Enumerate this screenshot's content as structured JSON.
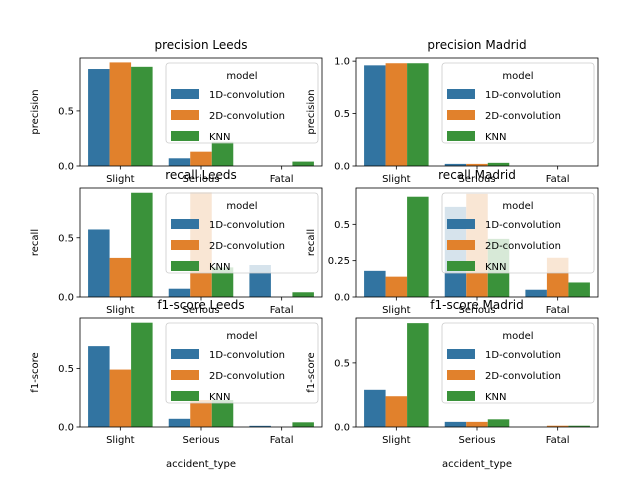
{
  "colors": {
    "1D-convolution": "#3274a1",
    "2D-convolution": "#e1812c",
    "KNN": "#3a923a"
  },
  "chart_data": [
    {
      "type": "bar",
      "title": "precision Leeds",
      "ylabel": "precision",
      "xlabel": "",
      "categories": [
        "Slight",
        "Serious",
        "Fatal"
      ],
      "yticks": [
        0.0,
        0.5
      ],
      "ylim": [
        0,
        0.98
      ],
      "legend_title": "model",
      "legend_position": "upper right",
      "series": [
        {
          "name": "1D-convolution",
          "values": [
            0.88,
            0.07,
            0.0
          ]
        },
        {
          "name": "2D-convolution",
          "values": [
            0.94,
            0.13,
            0.0
          ]
        },
        {
          "name": "KNN",
          "values": [
            0.9,
            0.22,
            0.04
          ]
        }
      ]
    },
    {
      "type": "bar",
      "title": "precision Madrid",
      "ylabel": "precision",
      "xlabel": "",
      "categories": [
        "Slight",
        "Serious",
        "Fatal"
      ],
      "yticks": [
        0.0,
        0.5,
        1.0
      ],
      "ylim": [
        0,
        1.03
      ],
      "legend_title": "model",
      "legend_position": "upper right",
      "series": [
        {
          "name": "1D-convolution",
          "values": [
            0.96,
            0.02,
            0.0
          ]
        },
        {
          "name": "2D-convolution",
          "values": [
            0.98,
            0.02,
            0.0
          ]
        },
        {
          "name": "KNN",
          "values": [
            0.98,
            0.03,
            0.0
          ]
        }
      ]
    },
    {
      "type": "bar",
      "title": "recall Leeds",
      "ylabel": "recall",
      "xlabel": "",
      "categories": [
        "Slight",
        "Serious",
        "Fatal"
      ],
      "yticks": [
        0.0,
        0.5
      ],
      "ylim": [
        0,
        0.92
      ],
      "legend_title": "model",
      "legend_position": "upper right",
      "series": [
        {
          "name": "1D-convolution",
          "values": [
            0.57,
            0.07,
            0.27
          ]
        },
        {
          "name": "2D-convolution",
          "values": [
            0.33,
            0.88,
            0.0
          ]
        },
        {
          "name": "KNN",
          "values": [
            0.88,
            0.25,
            0.04
          ]
        }
      ]
    },
    {
      "type": "bar",
      "title": "recall Madrid",
      "ylabel": "recall",
      "xlabel": "",
      "categories": [
        "Slight",
        "Serious",
        "Fatal"
      ],
      "yticks": [
        0.0,
        0.25,
        0.5
      ],
      "ylim": [
        0,
        0.75
      ],
      "legend_title": "model",
      "legend_position": "upper right",
      "series": [
        {
          "name": "1D-convolution",
          "values": [
            0.18,
            0.62,
            0.05
          ]
        },
        {
          "name": "2D-convolution",
          "values": [
            0.14,
            0.71,
            0.27
          ]
        },
        {
          "name": "KNN",
          "values": [
            0.69,
            0.4,
            0.1
          ]
        }
      ]
    },
    {
      "type": "bar",
      "title": "f1-score Leeds",
      "ylabel": "f1-score",
      "xlabel": "accident_type",
      "categories": [
        "Slight",
        "Serious",
        "Fatal"
      ],
      "yticks": [
        0.0,
        0.5
      ],
      "ylim": [
        0,
        0.93
      ],
      "legend_title": "model",
      "legend_position": "upper right",
      "series": [
        {
          "name": "1D-convolution",
          "values": [
            0.69,
            0.07,
            0.01
          ]
        },
        {
          "name": "2D-convolution",
          "values": [
            0.49,
            0.23,
            0.0
          ]
        },
        {
          "name": "KNN",
          "values": [
            0.89,
            0.23,
            0.04
          ]
        }
      ]
    },
    {
      "type": "bar",
      "title": "f1-score Madrid",
      "ylabel": "f1-score",
      "xlabel": "accident_type",
      "categories": [
        "Slight",
        "Serious",
        "Fatal"
      ],
      "yticks": [
        0.0,
        0.5
      ],
      "ylim": [
        0,
        0.85
      ],
      "legend_title": "model",
      "legend_position": "upper right",
      "series": [
        {
          "name": "1D-convolution",
          "values": [
            0.29,
            0.04,
            0.0
          ]
        },
        {
          "name": "2D-convolution",
          "values": [
            0.24,
            0.04,
            0.01
          ]
        },
        {
          "name": "KNN",
          "values": [
            0.81,
            0.06,
            0.01
          ]
        }
      ]
    }
  ]
}
